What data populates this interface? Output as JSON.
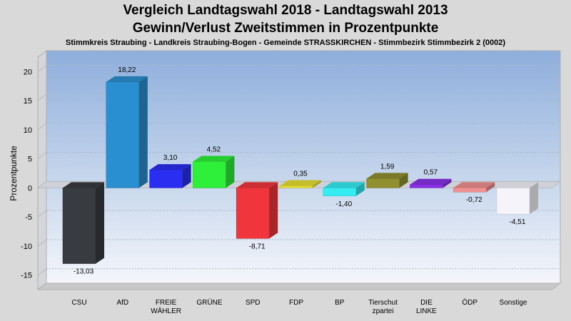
{
  "chart_data": {
    "type": "bar",
    "title": "Vergleich Landtagswahl 2018 - Landtagswahl 2013",
    "subtitle": "Gewinn/Verlust Zweitstimmen in Prozentpunkte",
    "subsubtitle": "Stimmkreis Straubing - Landkreis Straubing-Bogen - Gemeinde STRASSKIRCHEN - Stimmbezirk Stimmbezirk 2 (0002)",
    "ylabel": "Prozentpunkte",
    "xlabel": "",
    "ylim": [
      -17.5,
      22.5
    ],
    "yticks": [
      20,
      15,
      10,
      5,
      0,
      -5,
      -10,
      -15
    ],
    "ytick_labels": [
      "20",
      "15",
      "10",
      "5",
      "0",
      "-5",
      "-10",
      "-15"
    ],
    "grid": true,
    "bars": [
      {
        "label": "CSU",
        "value": -13.03,
        "value_label": "-13,03",
        "color": "#383b40"
      },
      {
        "label": "AfD",
        "value": 18.22,
        "value_label": "18,22",
        "color": "#2a8fd0"
      },
      {
        "label": "FREIE\nWÄHLER",
        "value": 3.1,
        "value_label": "3,10",
        "color": "#2a2ef0"
      },
      {
        "label": "GRÜNE",
        "value": 4.52,
        "value_label": "4,52",
        "color": "#2ef03a"
      },
      {
        "label": "SPD",
        "value": -8.71,
        "value_label": "-8,71",
        "color": "#f0363c"
      },
      {
        "label": "FDP",
        "value": 0.35,
        "value_label": "0,35",
        "color": "#e6e032"
      },
      {
        "label": "BP",
        "value": -1.4,
        "value_label": "-1,40",
        "color": "#34ecf2"
      },
      {
        "label": "Tierschut\nzpartei",
        "value": 1.59,
        "value_label": "1,59",
        "color": "#909030"
      },
      {
        "label": "DIE\nLINKE",
        "value": 0.57,
        "value_label": "0,57",
        "color": "#8a30e8"
      },
      {
        "label": "ÖDP",
        "value": -0.72,
        "value_label": "-0,72",
        "color": "#f09090"
      },
      {
        "label": "Sonstige",
        "value": -4.51,
        "value_label": "-4,51",
        "color": "#f4f4fa"
      }
    ]
  }
}
